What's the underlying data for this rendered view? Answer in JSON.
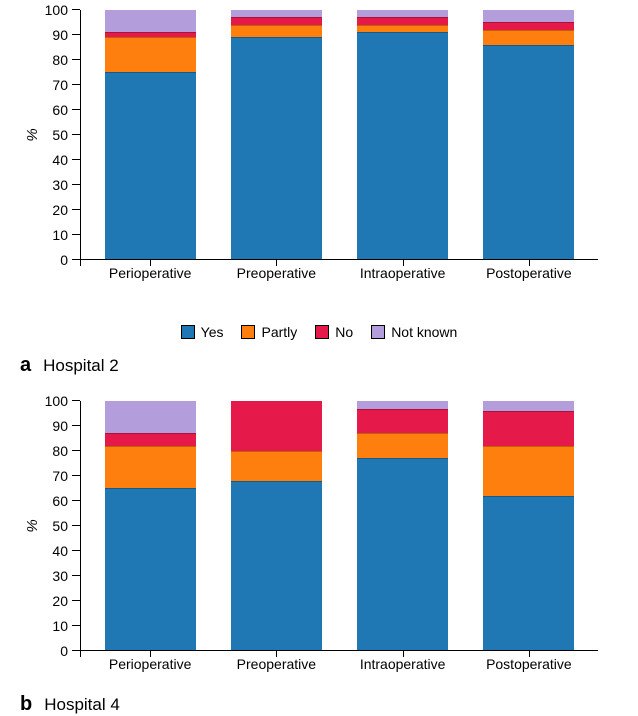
{
  "colors": {
    "yes": "#1f77b4",
    "partly": "#ff7f0e",
    "no": "#e6194b",
    "notknown": "#b39ddb",
    "axis": "#000000",
    "bg": "#ffffff"
  },
  "legend": {
    "yes": "Yes",
    "partly": "Partly",
    "no": "No",
    "notknown": "Not known"
  },
  "axis": {
    "y_label": "%",
    "ylim": [
      0,
      100
    ],
    "ytick_step": 10,
    "tick_labels": [
      "0",
      "10",
      "20",
      "30",
      "40",
      "50",
      "60",
      "70",
      "80",
      "90",
      "100"
    ]
  },
  "categories": [
    "Perioperative",
    "Preoperative",
    "Intraoperative",
    "Postoperative"
  ],
  "panels": [
    {
      "id": "a",
      "caption_letter": "a",
      "caption_text": "Hospital 2",
      "type": "stacked-bar",
      "bars": [
        {
          "yes": 75,
          "partly": 14,
          "no": 2,
          "notknown": 9
        },
        {
          "yes": 89,
          "partly": 5,
          "no": 3,
          "notknown": 3
        },
        {
          "yes": 91,
          "partly": 3,
          "no": 3,
          "notknown": 3
        },
        {
          "yes": 86,
          "partly": 6,
          "no": 3,
          "notknown": 5
        }
      ]
    },
    {
      "id": "b",
      "caption_letter": "b",
      "caption_text": "Hospital 4",
      "type": "stacked-bar",
      "bars": [
        {
          "yes": 65,
          "partly": 17,
          "no": 5,
          "notknown": 13
        },
        {
          "yes": 68,
          "partly": 12,
          "no": 20,
          "notknown": 0
        },
        {
          "yes": 77,
          "partly": 10,
          "no": 10,
          "notknown": 3
        },
        {
          "yes": 62,
          "partly": 20,
          "no": 14,
          "notknown": 4
        }
      ]
    }
  ]
}
